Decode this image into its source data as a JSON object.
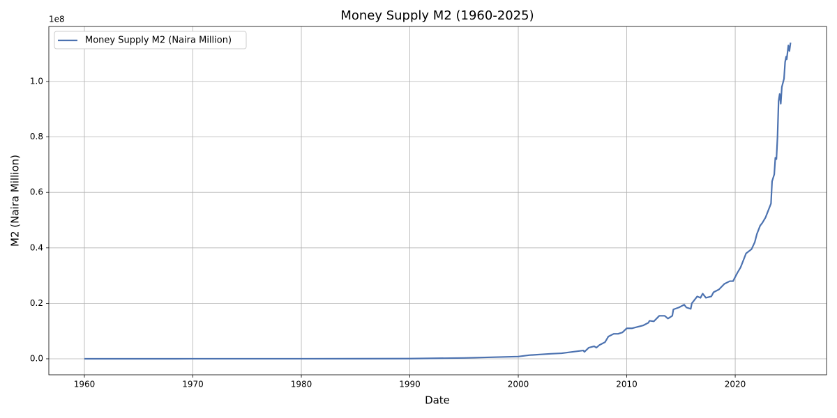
{
  "chart_data": {
    "type": "line",
    "title": "Money Supply M2 (1960-2025)",
    "x_label": "Date",
    "y_label": "M2 (Naira Million)",
    "y_offset_label": "1e8",
    "xlim": [
      1956.72,
      2028.42
    ],
    "ylim": [
      -0.0578,
      1.1985
    ],
    "xticks": [
      1960,
      1970,
      1980,
      1990,
      2000,
      2010,
      2020
    ],
    "yticks": [
      {
        "value": 0,
        "label": "0.0"
      },
      0.2,
      0.4,
      0.6,
      0.8,
      {
        "value": 1,
        "label": "1.0"
      }
    ],
    "grid": true,
    "legend": "upper left",
    "x": [
      1960,
      1970,
      1980,
      1990,
      1995,
      2000,
      2001,
      2003,
      2004,
      2005,
      2006,
      2006.1,
      2006.5,
      2007,
      2007.2,
      2007.5,
      2008,
      2008.3,
      2008.8,
      2009.2,
      2009.6,
      2010,
      2010.5,
      2011,
      2011.5,
      2012,
      2012.1,
      2012.5,
      2013,
      2013.5,
      2013.8,
      2014.2,
      2014.3,
      2014.8,
      2015.3,
      2015.5,
      2015.9,
      2016,
      2016.5,
      2016.8,
      2017,
      2017.3,
      2017.8,
      2018,
      2018.5,
      2019,
      2019.5,
      2019.8,
      2020.2,
      2020.5,
      2020.8,
      2021,
      2021.5,
      2021.8,
      2022,
      2022.3,
      2022.5,
      2022.8,
      2023,
      2023.3,
      2023.4,
      2023.6,
      2023.7,
      2023.8,
      2023.9,
      2024,
      2024.1,
      2024.2,
      2024.3,
      2024.5,
      2024.6,
      2024.7,
      2024.75,
      2024.9,
      2025,
      2025.1
    ],
    "series": [
      {
        "name": "Money Supply M2 (Naira Million)",
        "color": "#4c72b0",
        "values": [
          0,
          0.0001,
          0.0002,
          0.0006,
          0.003,
          0.008,
          0.013,
          0.018,
          0.02,
          0.025,
          0.03,
          0.025,
          0.04,
          0.045,
          0.04,
          0.05,
          0.06,
          0.08,
          0.09,
          0.09,
          0.095,
          0.11,
          0.11,
          0.115,
          0.12,
          0.13,
          0.137,
          0.135,
          0.155,
          0.155,
          0.145,
          0.155,
          0.178,
          0.185,
          0.195,
          0.185,
          0.18,
          0.2,
          0.225,
          0.22,
          0.235,
          0.22,
          0.225,
          0.24,
          0.25,
          0.27,
          0.28,
          0.28,
          0.31,
          0.33,
          0.36,
          0.38,
          0.395,
          0.42,
          0.45,
          0.48,
          0.49,
          0.51,
          0.53,
          0.56,
          0.64,
          0.665,
          0.725,
          0.72,
          0.8,
          0.93,
          0.955,
          0.92,
          0.98,
          1.01,
          1.07,
          1.09,
          1.08,
          1.13,
          1.11,
          1.14
        ]
      }
    ]
  }
}
